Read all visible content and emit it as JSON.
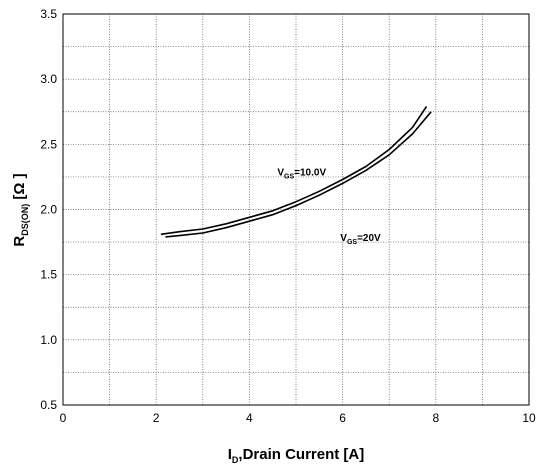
{
  "chart_data": {
    "type": "line",
    "xlabel_main": "I",
    "xlabel_sub": "D",
    "xlabel_rest": ",Drain Current [A]",
    "ylabel_main": "R",
    "ylabel_sub": "DS(ON)",
    "ylabel_rest": " [Ω ]",
    "xlim": [
      0,
      10
    ],
    "ylim": [
      0.5,
      3.5
    ],
    "x_ticks": [
      0,
      2,
      4,
      6,
      8,
      10
    ],
    "y_ticks": [
      0.5,
      1.0,
      1.5,
      2.0,
      2.5,
      3.0,
      3.5
    ],
    "x_tick_labels": [
      "0",
      "2",
      "4",
      "6",
      "8",
      "10"
    ],
    "y_tick_labels": [
      "0.5",
      "1.0",
      "1.5",
      "2.0",
      "2.5",
      "3.0",
      "3.5"
    ],
    "grid": true,
    "series": [
      {
        "name": "V_GS=10.0V",
        "x": [
          2.1,
          2.5,
          3.0,
          3.5,
          4.0,
          4.5,
          5.0,
          5.5,
          6.0,
          6.5,
          7.0,
          7.5,
          7.8
        ],
        "y": [
          1.81,
          1.83,
          1.85,
          1.89,
          1.94,
          1.99,
          2.06,
          2.14,
          2.23,
          2.33,
          2.46,
          2.63,
          2.79
        ]
      },
      {
        "name": "V_GS=20V",
        "x": [
          2.2,
          2.5,
          3.0,
          3.5,
          4.0,
          4.5,
          5.0,
          5.5,
          6.0,
          6.5,
          7.0,
          7.5,
          7.9
        ],
        "y": [
          1.79,
          1.8,
          1.82,
          1.86,
          1.91,
          1.96,
          2.03,
          2.11,
          2.2,
          2.3,
          2.42,
          2.58,
          2.75
        ]
      }
    ],
    "annotations": [
      {
        "main": "V",
        "sub": "GS",
        "rest": "=10.0V",
        "x": 4.6,
        "y": 2.26
      },
      {
        "main": "V",
        "sub": "GS",
        "rest": "=20V",
        "x": 5.95,
        "y": 1.76
      }
    ]
  }
}
